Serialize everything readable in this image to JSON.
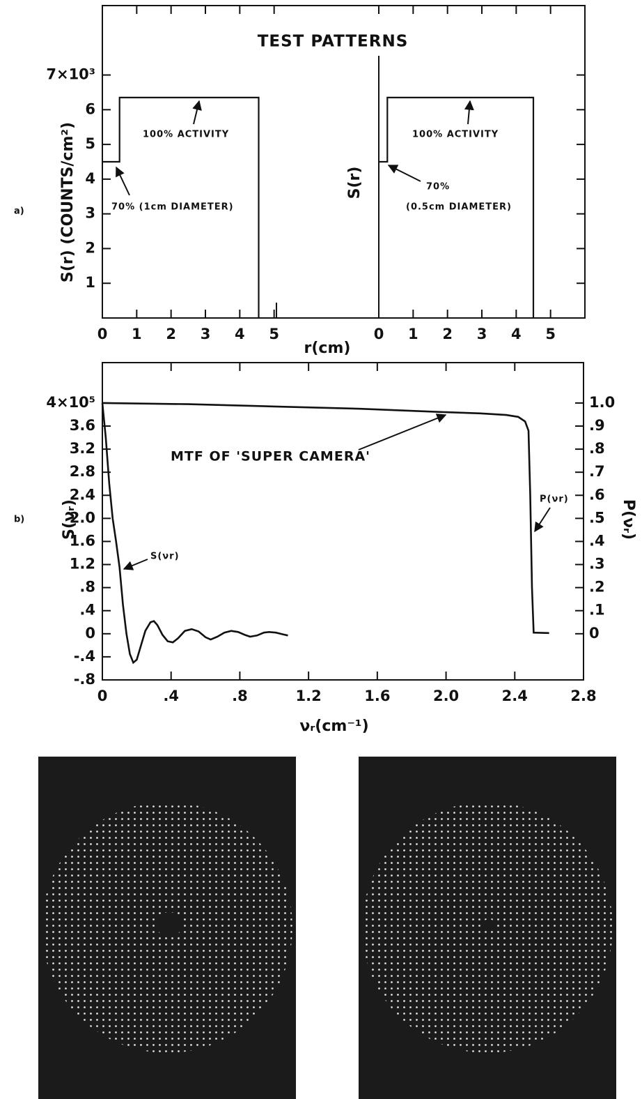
{
  "chart_data": [
    {
      "type": "line",
      "title": "TEST PATTERNS",
      "panel_label": "a)",
      "x_label": "r(cm)",
      "y_label": "S(r) (COUNTS/cm²)",
      "annotations": [
        "100% ACTIVITY",
        "70%  (1cm DIAMETER)"
      ],
      "x": [
        0,
        0.5,
        0.5,
        4.55,
        4.55
      ],
      "values": [
        4.5,
        4.5,
        6.35,
        6.35,
        0
      ],
      "color": "#111111",
      "xlim": [
        0,
        6
      ],
      "xticks": [
        0,
        1,
        2,
        3,
        4,
        5
      ],
      "ylim": [
        0,
        9
      ],
      "yticks": [
        1,
        2,
        3,
        4,
        5,
        6,
        {
          "value": 7,
          "label": "7×10³"
        }
      ]
    },
    {
      "type": "line",
      "y_label": "S(r)",
      "annotations": [
        "100% ACTIVITY",
        "70%",
        "(0.5cm DIAMETER)"
      ],
      "x": [
        0,
        0.25,
        0.25,
        4.5,
        4.5
      ],
      "values": [
        4.5,
        4.5,
        6.35,
        6.35,
        0
      ],
      "color": "#111111",
      "xlim": [
        0,
        6
      ],
      "xticks": [
        0,
        1,
        2,
        3,
        4,
        5
      ],
      "ylim": [
        0,
        9
      ]
    },
    {
      "type": "line",
      "panel_label": "b)",
      "x_label": "νᵣ(cm⁻¹)",
      "y_label": "S(νᵣ)",
      "y2_label": "P(νᵣ)",
      "annotations": [
        "MTF OF 'SUPER CAMERA'"
      ],
      "series": [
        {
          "name": "S(νr)",
          "color": "#111111",
          "x": [
            0,
            0.02,
            0.04,
            0.06,
            0.08,
            0.1,
            0.12,
            0.14,
            0.16,
            0.18,
            0.2,
            0.22,
            0.25,
            0.28,
            0.3,
            0.32,
            0.35,
            0.38,
            0.41,
            0.44,
            0.48,
            0.52,
            0.56,
            0.6,
            0.63,
            0.67,
            0.71,
            0.75,
            0.79,
            0.83,
            0.86,
            0.9,
            0.94,
            0.97,
            1.01,
            1.05,
            1.08
          ],
          "values": [
            4.0,
            3.4,
            2.6,
            2.0,
            1.6,
            1.15,
            0.5,
            0.0,
            -0.35,
            -0.5,
            -0.45,
            -0.25,
            0.05,
            0.2,
            0.22,
            0.15,
            -0.02,
            -0.13,
            -0.15,
            -0.08,
            0.05,
            0.08,
            0.04,
            -0.06,
            -0.1,
            -0.05,
            0.02,
            0.05,
            0.03,
            -0.02,
            -0.05,
            -0.03,
            0.02,
            0.03,
            0.02,
            -0.01,
            -0.03
          ]
        },
        {
          "name": "P(νr)",
          "color": "#111111",
          "axis": "y2",
          "x": [
            0,
            0.5,
            1.0,
            1.5,
            2.0,
            2.2,
            2.35,
            2.42,
            2.46,
            2.48,
            2.49,
            2.5,
            2.51,
            2.6
          ],
          "values": [
            1.0,
            0.995,
            0.985,
            0.975,
            0.96,
            0.955,
            0.948,
            0.94,
            0.92,
            0.88,
            0.6,
            0.2,
            0.005,
            0.003
          ]
        }
      ],
      "xlim": [
        0,
        2.8
      ],
      "xticks": [
        0,
        {
          "value": 0.4,
          "label": ".4"
        },
        {
          "value": 0.8,
          "label": ".8"
        },
        1.2,
        1.6,
        {
          "value": 2.0,
          "label": "2.0"
        },
        2.4,
        2.8
      ],
      "ylim": [
        -0.8,
        4.7
      ],
      "yticks": [
        {
          "value": -0.8,
          "label": "-.8"
        },
        {
          "value": -0.4,
          "label": "-.4"
        },
        0,
        {
          "value": 0.4,
          "label": ".4"
        },
        {
          "value": 0.8,
          "label": ".8"
        },
        1.2,
        1.6,
        {
          "value": 2.0,
          "label": "2.0"
        },
        2.4,
        2.8,
        3.2,
        3.6,
        {
          "value": 4.0,
          "label": "4×10⁵"
        }
      ],
      "y2lim": [
        -0.2,
        1.175
      ],
      "y2ticks": [
        0,
        {
          "value": 0.1,
          "label": ".1"
        },
        {
          "value": 0.2,
          "label": ".2"
        },
        {
          "value": 0.3,
          "label": ".3"
        },
        {
          "value": 0.4,
          "label": ".4"
        },
        {
          "value": 0.5,
          "label": ".5"
        },
        {
          "value": 0.6,
          "label": ".6"
        },
        {
          "value": 0.7,
          "label": ".7"
        },
        {
          "value": 0.8,
          "label": ".8"
        },
        {
          "value": 0.9,
          "label": ".9"
        },
        {
          "value": 1.0,
          "label": "1.0"
        }
      ]
    }
  ]
}
